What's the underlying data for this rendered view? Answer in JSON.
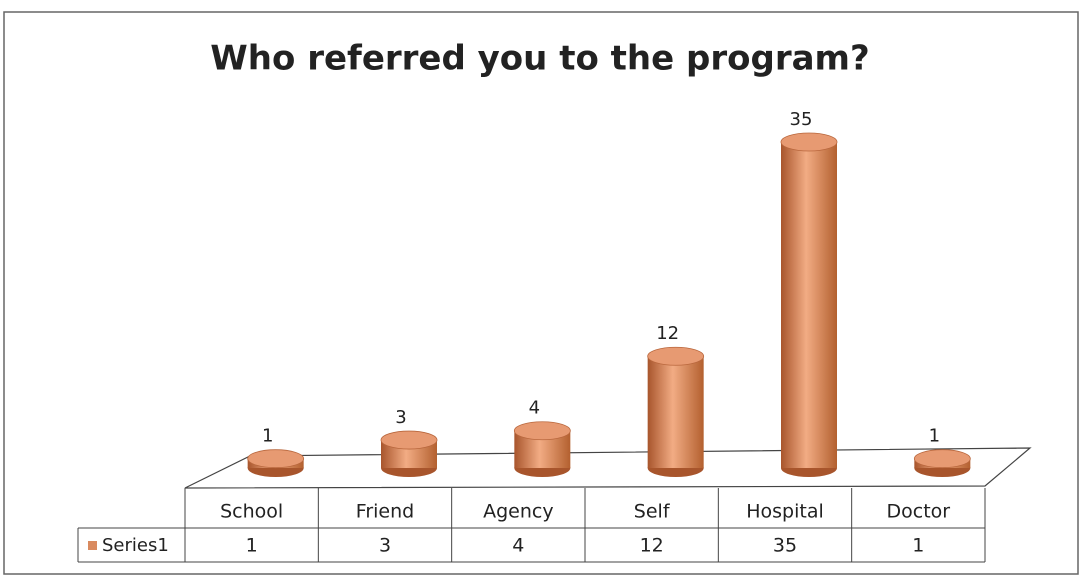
{
  "chart_data": {
    "type": "bar3d",
    "title": "Who referred you to the program?",
    "categories": [
      "School",
      "Friend",
      "Agency",
      "Self",
      "Hospital",
      "Doctor"
    ],
    "series": [
      {
        "name": "Series1",
        "color": "#d98a5f",
        "values": [
          1,
          3,
          4,
          12,
          35,
          1
        ]
      }
    ]
  }
}
